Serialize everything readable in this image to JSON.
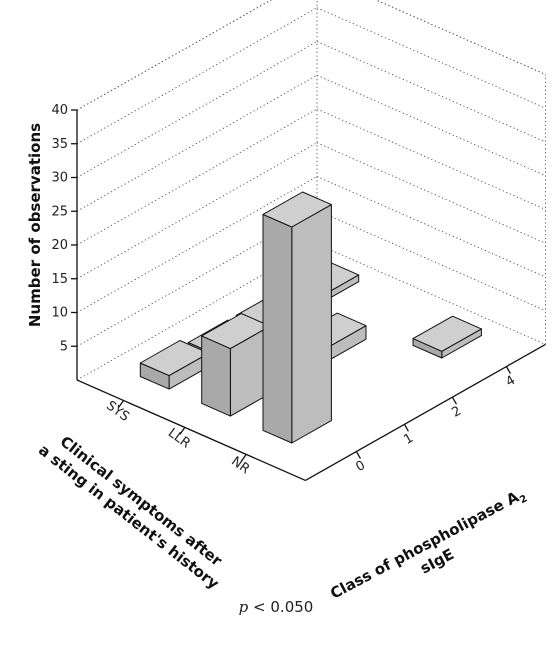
{
  "chart_data": {
    "type": "bar3d",
    "zlabel": "Number of observations",
    "zlim": [
      0,
      40
    ],
    "zticks": [
      5,
      10,
      15,
      20,
      25,
      30,
      35,
      40
    ],
    "y_axis": {
      "label_line1": "Clinical symptoms after",
      "label_line2": "a sting in patient's history",
      "categories": [
        "SYS",
        "LLR",
        "NR"
      ]
    },
    "x_axis": {
      "label_line1": "Class of phospholipase A",
      "label_subscript": "2",
      "label_line2": "sIgE",
      "categories": [
        "0",
        "1",
        "2",
        "4"
      ]
    },
    "bars": [
      {
        "symptom": "SYS",
        "class": "0",
        "value": 2
      },
      {
        "symptom": "SYS",
        "class": "1",
        "value": 1
      },
      {
        "symptom": "SYS",
        "class": "2",
        "value": 1
      },
      {
        "symptom": "SYS",
        "class": "4",
        "value": 1
      },
      {
        "symptom": "LLR",
        "class": "0",
        "value": 10
      },
      {
        "symptom": "LLR",
        "class": "2",
        "value": 2
      },
      {
        "symptom": "NR",
        "class": "0",
        "value": 32
      },
      {
        "symptom": "NR",
        "class": "4",
        "value": 1
      }
    ],
    "grid": true,
    "colors": {
      "bar": "#bdbdbd",
      "bar_side": "#a9a9a9",
      "bar_top": "#cfcfcf",
      "edge": "#111111"
    }
  },
  "footer": {
    "p_italic": "p",
    "p_rest": "< 0.050"
  }
}
